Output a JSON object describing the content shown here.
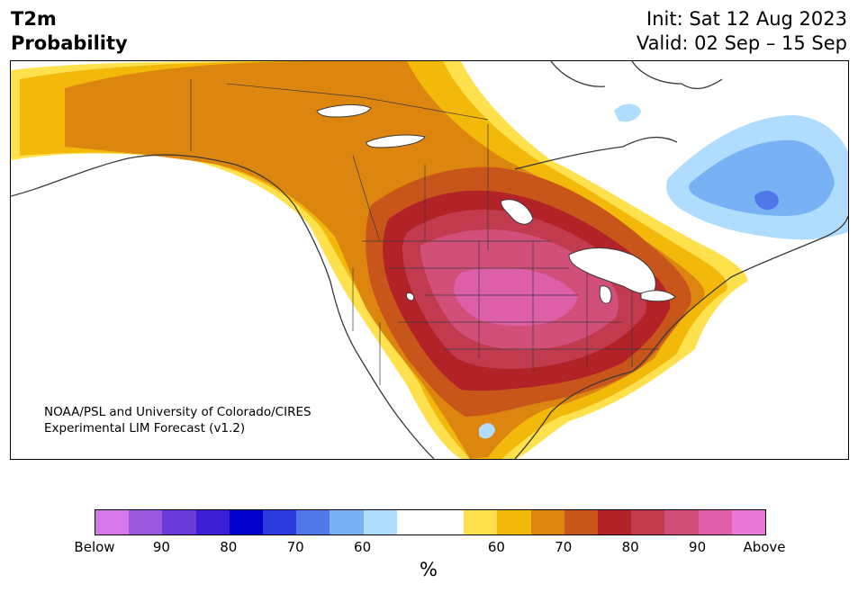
{
  "header": {
    "title_line1": "T2m",
    "title_line2": "Probability",
    "init": "Init: Sat 12 Aug 2023",
    "valid": "Valid: 02 Sep – 15 Sep"
  },
  "credit": {
    "line1": "NOAA/PSL and University of Colorado/CIRES",
    "line2": "Experimental LIM Forecast (v1.2)"
  },
  "colorbar": {
    "colors": [
      "#d678ea",
      "#9b59e0",
      "#6a3ad8",
      "#3c1fd4",
      "#0000cc",
      "#2a3adc",
      "#5078e8",
      "#78b2f5",
      "#b0dcfd",
      "#ffffff",
      "#ffffff",
      "#ffe14d",
      "#f2b80a",
      "#dd860f",
      "#c8561b",
      "#b22227",
      "#c23a4e",
      "#d24f7a",
      "#dc5fa8",
      "#e878d8"
    ],
    "tick_labels": [
      "Below",
      "90",
      "80",
      "70",
      "60",
      "60",
      "70",
      "80",
      "90",
      "Above"
    ],
    "unit": "%"
  },
  "legend_colors": {
    "above_60": "#ffe14d",
    "above_65": "#f2b80a",
    "above_70": "#dd860f",
    "above_75": "#c8561b",
    "above_80": "#b22227",
    "above_85": "#c23a4e",
    "above_90": "#d24f7a",
    "above_95": "#dc5fa8",
    "below_60": "#b0dcfd",
    "below_65": "#78b2f5",
    "below_70": "#5078e8"
  }
}
